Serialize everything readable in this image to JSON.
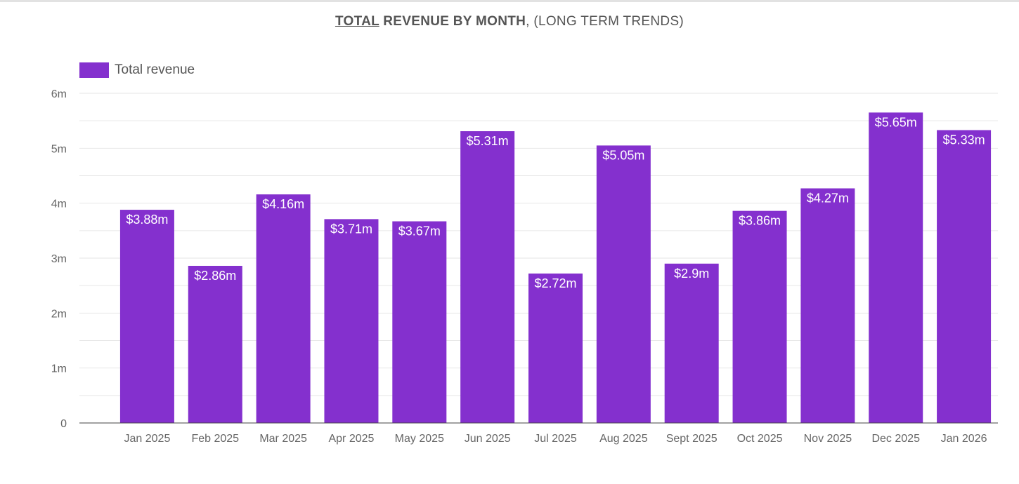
{
  "title": {
    "part1": "TOTAL",
    "part2": " REVENUE BY MONTH",
    "part3": ", (LONG TERM TRENDS)"
  },
  "chart_data": {
    "type": "bar",
    "title": "TOTAL REVENUE BY MONTH, (LONG TERM TRENDS)",
    "xlabel": "",
    "ylabel": "",
    "categories": [
      "Jan 2025",
      "Feb 2025",
      "Mar 2025",
      "Apr 2025",
      "May 2025",
      "Jun 2025",
      "Jul 2025",
      "Aug 2025",
      "Sept 2025",
      "Oct 2025",
      "Nov 2025",
      "Dec 2025",
      "Jan 2026"
    ],
    "series": [
      {
        "name": "Total revenue",
        "values": [
          3.88,
          2.86,
          4.16,
          3.71,
          3.67,
          5.31,
          2.72,
          5.05,
          2.9,
          3.86,
          4.27,
          5.65,
          5.33
        ],
        "labels": [
          "$3.88m",
          "$2.86m",
          "$4.16m",
          "$3.71m",
          "$3.67m",
          "$5.31m",
          "$2.72m",
          "$5.05m",
          "$2.9m",
          "$3.86m",
          "$4.27m",
          "$5.65m",
          "$5.33m"
        ],
        "color": "#8430ce"
      }
    ],
    "y_ticks": [
      "0",
      "1m",
      "2m",
      "3m",
      "4m",
      "5m",
      "6m"
    ],
    "ylim": [
      0,
      6
    ],
    "grid": true,
    "legend": "top-left"
  }
}
